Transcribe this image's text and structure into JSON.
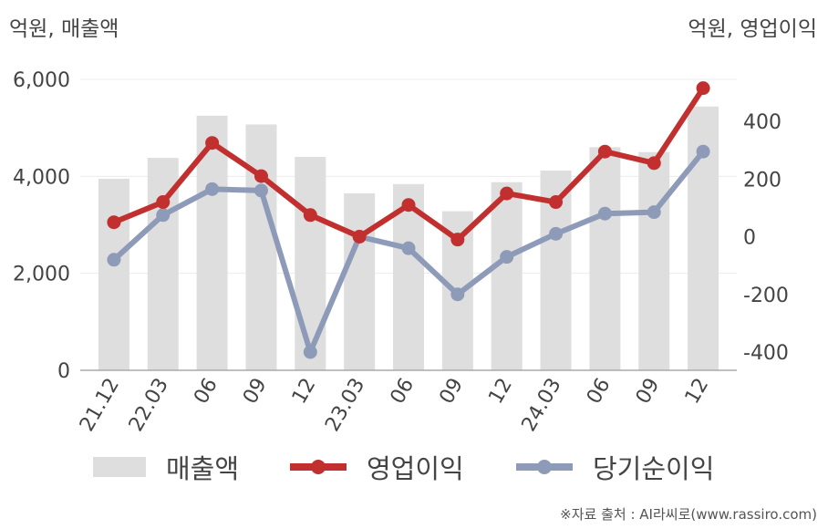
{
  "units": {
    "left": "억원, 매출액",
    "right": "억원, 영업이익"
  },
  "legend": {
    "revenue": "매출액",
    "operating": "영업이익",
    "net": "당기순이익"
  },
  "source": "※자료 출처 : AI라씨로(www.rassiro.com)",
  "colors": {
    "revenue": "#dedede",
    "operating": "#c1302f",
    "net": "#8e9bb8",
    "axis": "#aaaaaa",
    "grid": "#ececec",
    "text": "#444444"
  },
  "chart_data": {
    "type": "bar",
    "categories": [
      "21.12",
      "22.03",
      "06",
      "09",
      "12",
      "23.03",
      "06",
      "09",
      "12",
      "24.03",
      "06",
      "09",
      "12"
    ],
    "series": [
      {
        "name": "매출액",
        "type": "bar",
        "axis": "left",
        "values": [
          3950,
          4380,
          5250,
          5070,
          4400,
          3650,
          3840,
          3280,
          3880,
          4120,
          4600,
          4500,
          5440
        ]
      },
      {
        "name": "영업이익",
        "type": "line",
        "axis": "right",
        "values": [
          50,
          120,
          325,
          210,
          75,
          0,
          110,
          -10,
          150,
          120,
          295,
          255,
          515
        ]
      },
      {
        "name": "당기순이익",
        "type": "line",
        "axis": "right",
        "values": [
          -80,
          75,
          165,
          160,
          -400,
          0,
          -40,
          -200,
          -70,
          10,
          80,
          85,
          295
        ]
      }
    ],
    "left_axis": {
      "ylim": [
        0,
        6000
      ],
      "ticks": [
        "0",
        "2,000",
        "4,000",
        "6,000"
      ]
    },
    "right_axis": {
      "ylim": [
        -400,
        400
      ],
      "ticks": [
        "-400",
        "-200",
        "0",
        "200",
        "400"
      ]
    },
    "grid": true,
    "legend_position": "bottom"
  }
}
